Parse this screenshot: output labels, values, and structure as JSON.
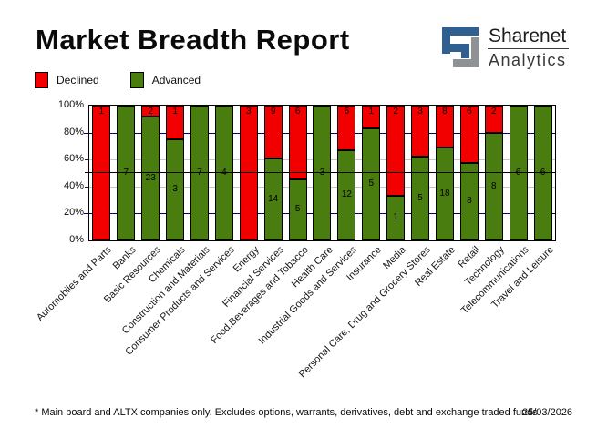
{
  "header": {
    "title": "Market Breadth Report",
    "logo": {
      "brand_top": "Sharenet",
      "brand_bottom": "Analytics"
    }
  },
  "legend": [
    {
      "label": "Declined",
      "color": "#f20000"
    },
    {
      "label": "Advanced",
      "color": "#4a7d0f"
    }
  ],
  "colors": {
    "declined": "#f20000",
    "advanced": "#4a7d0f",
    "gridline_navy": "#000080",
    "gridline_gray": "#c6c6c6",
    "reference_line": "#000000",
    "logo_blue": "#2f608f",
    "logo_gray": "#8f9295"
  },
  "chart_data": {
    "type": "bar",
    "stacked": true,
    "normalized": "percent",
    "title": "Market Breadth Report",
    "xlabel": "",
    "ylabel": "",
    "ylim": [
      0,
      100
    ],
    "y_ticks": [
      "0%",
      "20%",
      "40%",
      "60%",
      "80%",
      "100%"
    ],
    "legend_position": "top-left",
    "reference_line_pct": 50,
    "gridlines": [
      {
        "pct": 20,
        "color": "#000080",
        "tick": 5
      },
      {
        "pct": 40,
        "color": "#c6c6c6",
        "tick": 4
      },
      {
        "pct": 60,
        "color": "#c6c6c6",
        "tick": 4
      },
      {
        "pct": 80,
        "color": "#000080",
        "tick": 5
      }
    ],
    "categories": [
      "Automobiles and Parts",
      "Banks",
      "Basic Resources",
      "Chemicals",
      "Construction and Materials",
      "Consumer Products and Services",
      "Energy",
      "Financial Services",
      "Food,Beverages and Tobacco",
      "Health Care",
      "Industrial Goods and Services",
      "Insurance",
      "Media",
      "Personal Care, Drug and Grocery Stores",
      "Real Estate",
      "Retail",
      "Technology",
      "Telecommunications",
      "Travel and Leisure"
    ],
    "series": [
      {
        "name": "Declined",
        "color": "#f20000",
        "values": [
          1,
          0,
          2,
          1,
          0,
          0,
          3,
          9,
          6,
          0,
          6,
          1,
          2,
          3,
          8,
          6,
          2,
          0,
          0
        ]
      },
      {
        "name": "Advanced",
        "color": "#4a7d0f",
        "values": [
          0,
          7,
          23,
          3,
          7,
          4,
          0,
          14,
          5,
          3,
          12,
          5,
          1,
          5,
          18,
          8,
          8,
          6,
          6
        ]
      }
    ]
  },
  "footer": {
    "note": "* Main board and ALTX companies only. Excludes options, warrants, derivatives, debt and exchange traded funds",
    "date": "25/03/2026"
  }
}
